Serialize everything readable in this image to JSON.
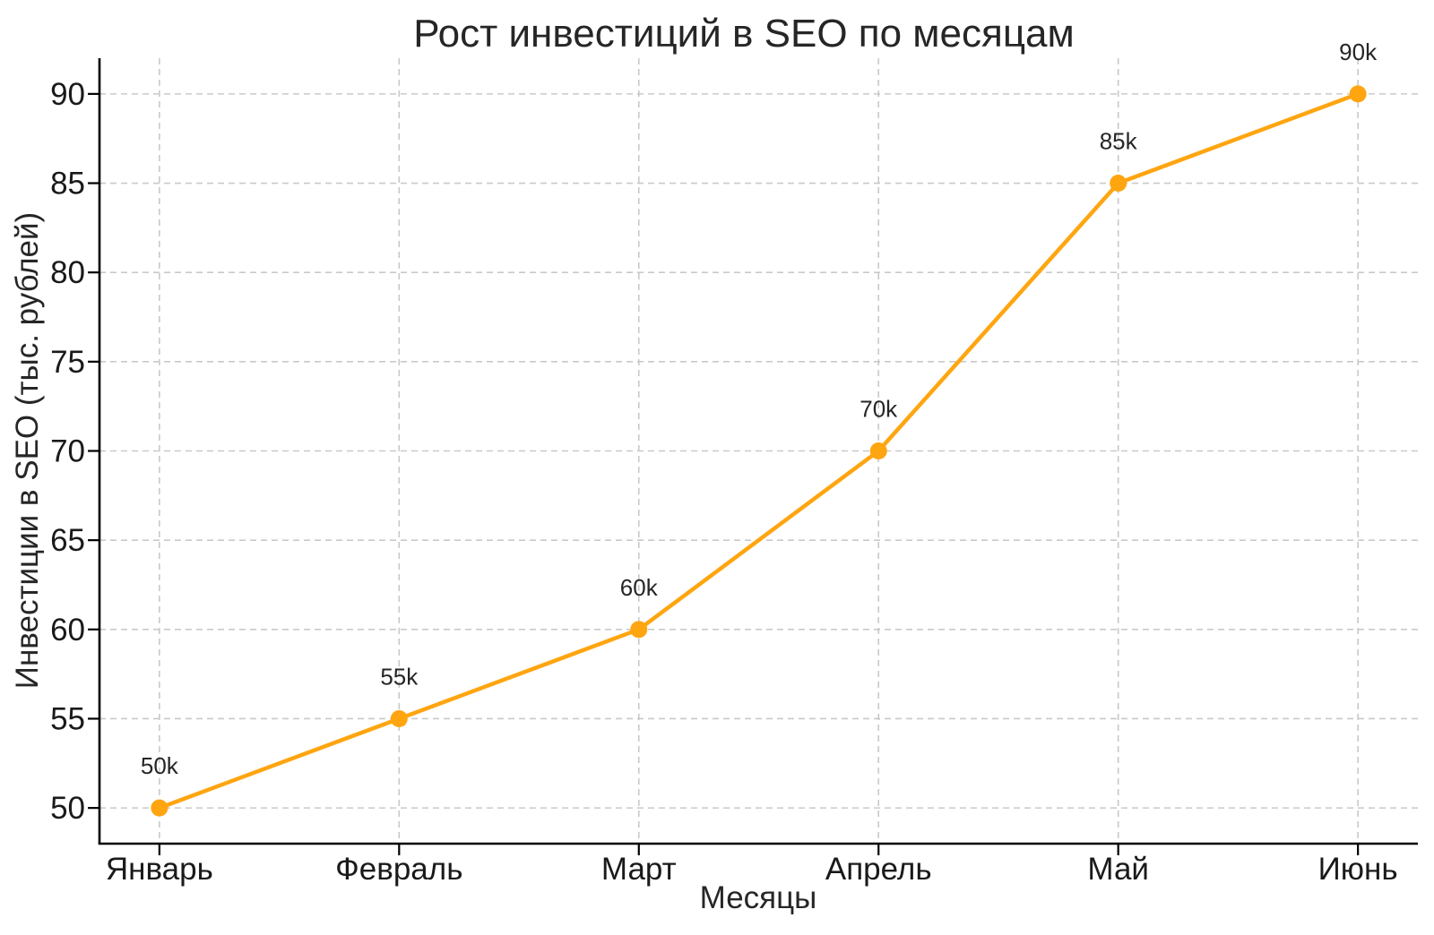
{
  "figure": {
    "background": "#ffffff"
  },
  "chart_data": {
    "type": "line",
    "title": "Рост инвестиций в SEO по месяцам",
    "xlabel": "Месяцы",
    "ylabel": "Инвестиции в SEO (тыс. рублей)",
    "categories": [
      "Январь",
      "Февраль",
      "Март",
      "Апрель",
      "Май",
      "Июнь"
    ],
    "values": [
      50,
      55,
      60,
      70,
      85,
      90
    ],
    "point_labels": [
      "50k",
      "55k",
      "60k",
      "70k",
      "85k",
      "90k"
    ],
    "y_ticks": [
      50,
      55,
      60,
      65,
      70,
      75,
      80,
      85,
      90
    ],
    "ylim": [
      48,
      92
    ],
    "xlim": [
      -0.25,
      5.25
    ],
    "grid": "dashed-both-axes",
    "legend": "none",
    "colors": {
      "line": "#FFA510",
      "marker": "#FFA510",
      "grid": "#c9c9c9",
      "spine": "#000000",
      "text": "#262626"
    }
  }
}
